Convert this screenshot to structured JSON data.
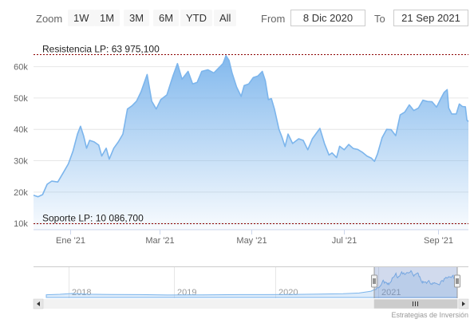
{
  "toolbar": {
    "zoom_label": "Zoom",
    "buttons": [
      "1W",
      "1M",
      "3M",
      "6M",
      "YTD",
      "All"
    ],
    "from_label": "From",
    "from_value": "8 Dic 2020",
    "to_label": "To",
    "to_value": "21 Sep 2021"
  },
  "navigator": {
    "year_labels": [
      "2018",
      "2019",
      "2020",
      "2021"
    ]
  },
  "credits": "Estrategias de Inversión",
  "colors": {
    "series": "#7cb5ec",
    "plot_lines": "#8b0000",
    "navigator_mask": "rgba(102,133,194,0.3)"
  },
  "chart_data": {
    "type": "area",
    "title": "",
    "xlabel": "",
    "ylabel": "",
    "x_tick_labels": [
      "Ene '21",
      "Mar '21",
      "May '21",
      "Jul '21",
      "Sep '21"
    ],
    "y_tick_labels": [
      "10k",
      "20k",
      "30k",
      "40k",
      "50k",
      "60k"
    ],
    "ylim": [
      8000,
      66000
    ],
    "xlim": [
      "2020-12-08",
      "2021-09-21"
    ],
    "plot_lines": [
      {
        "label": "Resistencia LP: 63 975,100",
        "value": 63975.1
      },
      {
        "label": "Soporte LP: 10 086,700",
        "value": 10086.7
      }
    ],
    "series": [
      {
        "points": [
          [
            "2020-12-08",
            19000
          ],
          [
            "2020-12-11",
            18500
          ],
          [
            "2020-12-14",
            19200
          ],
          [
            "2020-12-17",
            22500
          ],
          [
            "2020-12-20",
            23500
          ],
          [
            "2020-12-24",
            23200
          ],
          [
            "2020-12-28",
            26500
          ],
          [
            "2020-12-31",
            29000
          ],
          [
            "2021-01-03",
            33000
          ],
          [
            "2021-01-06",
            38500
          ],
          [
            "2021-01-08",
            41000
          ],
          [
            "2021-01-10",
            38000
          ],
          [
            "2021-01-12",
            34000
          ],
          [
            "2021-01-14",
            36500
          ],
          [
            "2021-01-17",
            36000
          ],
          [
            "2021-01-20",
            35000
          ],
          [
            "2021-01-22",
            31500
          ],
          [
            "2021-01-25",
            34000
          ],
          [
            "2021-01-27",
            30500
          ],
          [
            "2021-01-30",
            34000
          ],
          [
            "2021-02-02",
            36000
          ],
          [
            "2021-02-05",
            38500
          ],
          [
            "2021-02-08",
            46500
          ],
          [
            "2021-02-11",
            47500
          ],
          [
            "2021-02-14",
            49000
          ],
          [
            "2021-02-17",
            52000
          ],
          [
            "2021-02-21",
            57500
          ],
          [
            "2021-02-24",
            49000
          ],
          [
            "2021-02-27",
            46500
          ],
          [
            "2021-03-02",
            49500
          ],
          [
            "2021-03-06",
            51000
          ],
          [
            "2021-03-10",
            57000
          ],
          [
            "2021-03-13",
            61000
          ],
          [
            "2021-03-16",
            56000
          ],
          [
            "2021-03-20",
            58500
          ],
          [
            "2021-03-23",
            54500
          ],
          [
            "2021-03-26",
            55000
          ],
          [
            "2021-03-29",
            58500
          ],
          [
            "2021-04-02",
            59000
          ],
          [
            "2021-04-06",
            58000
          ],
          [
            "2021-04-09",
            59500
          ],
          [
            "2021-04-12",
            61000
          ],
          [
            "2021-04-14",
            63500
          ],
          [
            "2021-04-16",
            62000
          ],
          [
            "2021-04-18",
            58000
          ],
          [
            "2021-04-21",
            53500
          ],
          [
            "2021-04-24",
            50500
          ],
          [
            "2021-04-26",
            54000
          ],
          [
            "2021-04-29",
            54500
          ],
          [
            "2021-05-02",
            56500
          ],
          [
            "2021-05-05",
            57000
          ],
          [
            "2021-05-08",
            58500
          ],
          [
            "2021-05-10",
            55500
          ],
          [
            "2021-05-12",
            49500
          ],
          [
            "2021-05-14",
            49800
          ],
          [
            "2021-05-16",
            46500
          ],
          [
            "2021-05-19",
            40000
          ],
          [
            "2021-05-21",
            37500
          ],
          [
            "2021-05-23",
            34500
          ],
          [
            "2021-05-25",
            38500
          ],
          [
            "2021-05-28",
            35500
          ],
          [
            "2021-06-01",
            37000
          ],
          [
            "2021-06-04",
            36500
          ],
          [
            "2021-06-07",
            33500
          ],
          [
            "2021-06-10",
            37000
          ],
          [
            "2021-06-13",
            39000
          ],
          [
            "2021-06-15",
            40300
          ],
          [
            "2021-06-18",
            35500
          ],
          [
            "2021-06-21",
            31800
          ],
          [
            "2021-06-23",
            32500
          ],
          [
            "2021-06-26",
            31000
          ],
          [
            "2021-06-28",
            34600
          ],
          [
            "2021-07-01",
            33500
          ],
          [
            "2021-07-04",
            35200
          ],
          [
            "2021-07-07",
            33900
          ],
          [
            "2021-07-10",
            33600
          ],
          [
            "2021-07-13",
            32700
          ],
          [
            "2021-07-16",
            31500
          ],
          [
            "2021-07-19",
            30800
          ],
          [
            "2021-07-21",
            29800
          ],
          [
            "2021-07-23",
            32200
          ],
          [
            "2021-07-26",
            37300
          ],
          [
            "2021-07-29",
            40000
          ],
          [
            "2021-08-01",
            39900
          ],
          [
            "2021-08-04",
            38000
          ],
          [
            "2021-08-07",
            44600
          ],
          [
            "2021-08-10",
            45500
          ],
          [
            "2021-08-13",
            47800
          ],
          [
            "2021-08-16",
            46000
          ],
          [
            "2021-08-19",
            46800
          ],
          [
            "2021-08-22",
            49300
          ],
          [
            "2021-08-25",
            48900
          ],
          [
            "2021-08-28",
            48800
          ],
          [
            "2021-08-31",
            47100
          ],
          [
            "2021-09-03",
            50000
          ],
          [
            "2021-09-05",
            51800
          ],
          [
            "2021-09-07",
            52700
          ],
          [
            "2021-09-08",
            46800
          ],
          [
            "2021-09-10",
            44900
          ],
          [
            "2021-09-13",
            44900
          ],
          [
            "2021-09-15",
            48100
          ],
          [
            "2021-09-17",
            47300
          ],
          [
            "2021-09-19",
            47200
          ],
          [
            "2021-09-20",
            43000
          ],
          [
            "2021-09-21",
            42500
          ]
        ]
      }
    ]
  }
}
